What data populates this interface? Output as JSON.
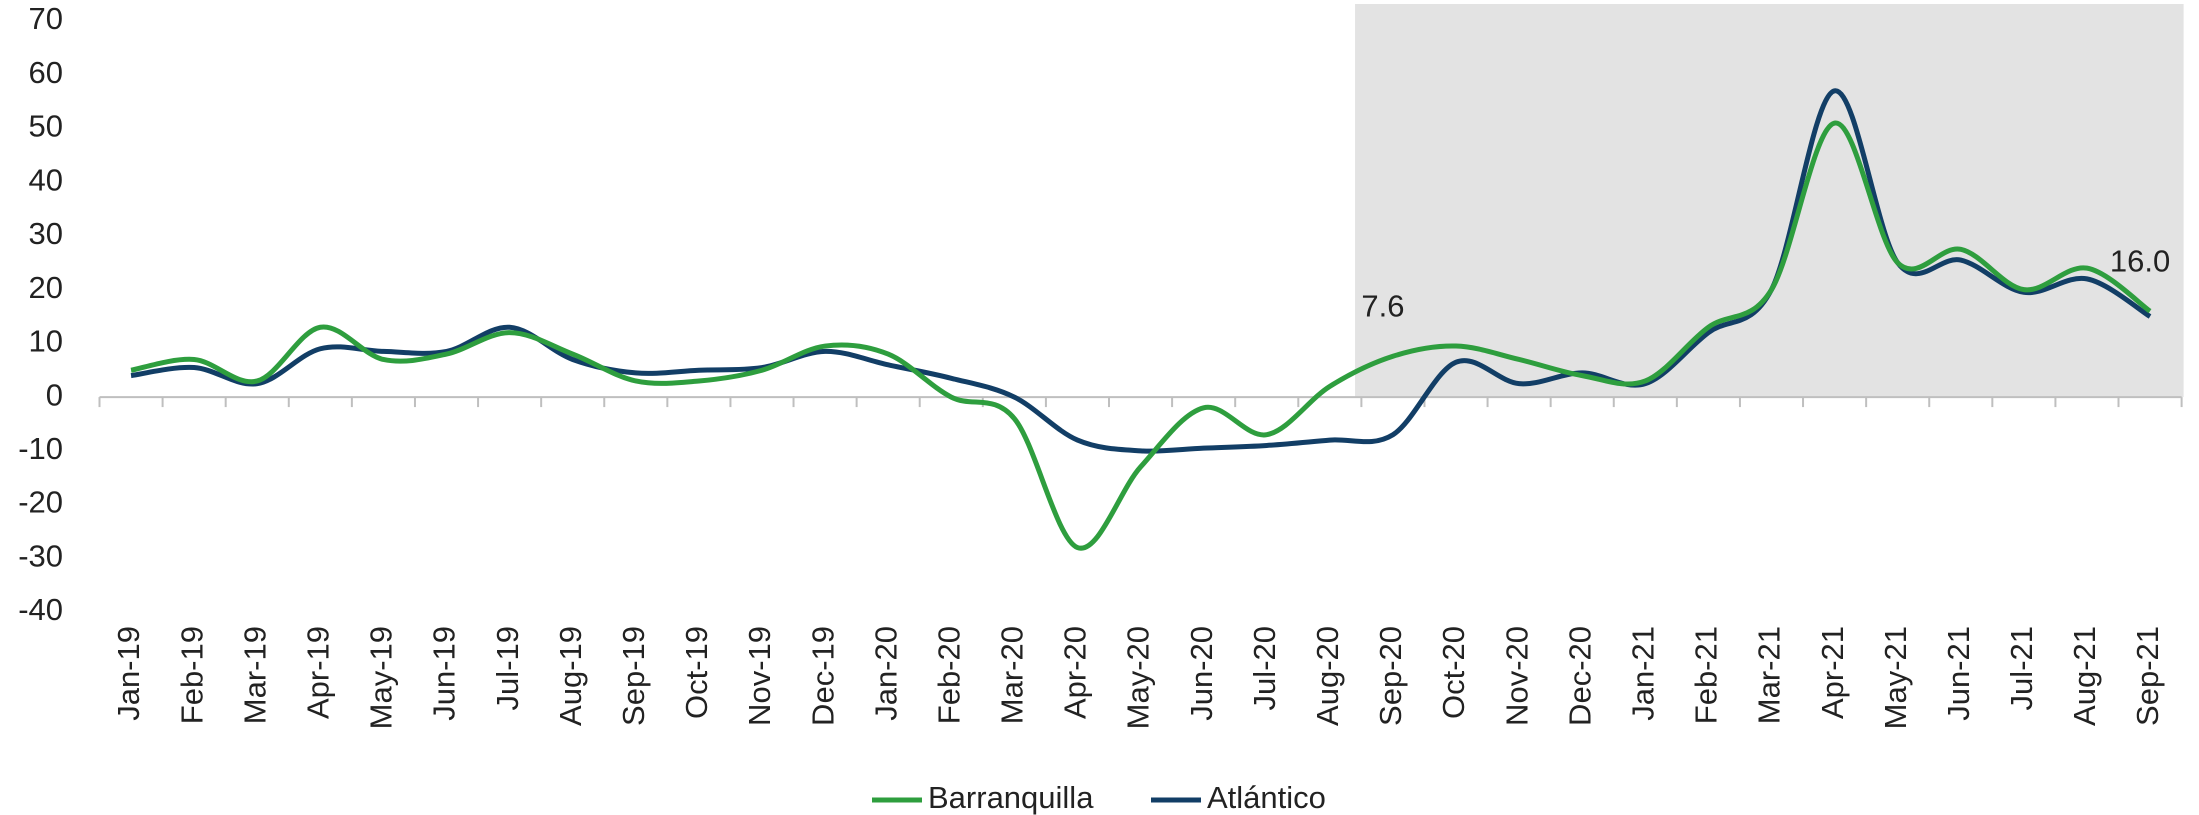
{
  "chart_data": {
    "type": "line",
    "categories": [
      "Jan-19",
      "Feb-19",
      "Mar-19",
      "Apr-19",
      "May-19",
      "Jun-19",
      "Jul-19",
      "Aug-19",
      "Sep-19",
      "Oct-19",
      "Nov-19",
      "Dec-19",
      "Jan-20",
      "Feb-20",
      "Mar-20",
      "Apr-20",
      "May-20",
      "Jun-20",
      "Jul-20",
      "Aug-20",
      "Sep-20",
      "Oct-20",
      "Nov-20",
      "Dec-20",
      "Jan-21",
      "Feb-21",
      "Mar-21",
      "Apr-21",
      "May-21",
      "Jun-21",
      "Jul-21",
      "Aug-21",
      "Sep-21"
    ],
    "series": [
      {
        "name": "Barranquilla",
        "color": "#2e9e3e",
        "values": [
          5,
          7,
          3,
          13,
          7,
          8,
          12,
          8,
          3,
          3,
          5,
          9.5,
          8,
          0,
          -4,
          -28,
          -13,
          -2,
          -7,
          2,
          7.6,
          9.5,
          7,
          4,
          3,
          13,
          20,
          51,
          25,
          27.5,
          20,
          24,
          16.0
        ],
        "value_labels": [
          null,
          null,
          null,
          null,
          null,
          null,
          null,
          null,
          null,
          null,
          null,
          null,
          null,
          null,
          null,
          null,
          null,
          null,
          null,
          null,
          "7.6",
          null,
          null,
          null,
          null,
          null,
          null,
          null,
          null,
          null,
          null,
          null,
          "16.0"
        ]
      },
      {
        "name": "Atlántico",
        "color": "#123e66",
        "values": [
          4,
          5.5,
          2.5,
          9,
          8.5,
          8.5,
          13,
          7,
          4.5,
          5,
          5.5,
          8.5,
          6,
          3.5,
          0,
          -8,
          -10,
          -9.5,
          -9,
          -8,
          -7,
          6.5,
          2.5,
          4.5,
          2.5,
          12,
          20,
          57,
          25,
          25.5,
          19.5,
          22,
          15
        ]
      }
    ],
    "ylim": [
      -40,
      70
    ],
    "yticks": [
      -40,
      -30,
      -20,
      -10,
      0,
      10,
      20,
      30,
      40,
      50,
      60,
      70
    ],
    "grid": false
  }
}
